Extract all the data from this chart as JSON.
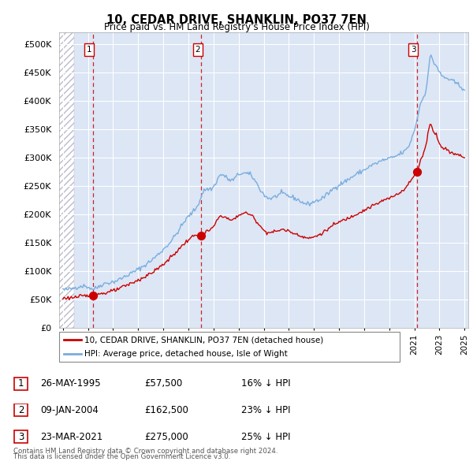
{
  "title": "10, CEDAR DRIVE, SHANKLIN, PO37 7EN",
  "subtitle": "Price paid vs. HM Land Registry's House Price Index (HPI)",
  "footer1": "Contains HM Land Registry data © Crown copyright and database right 2024.",
  "footer2": "This data is licensed under the Open Government Licence v3.0.",
  "legend_house": "10, CEDAR DRIVE, SHANKLIN, PO37 7EN (detached house)",
  "legend_hpi": "HPI: Average price, detached house, Isle of Wight",
  "transactions": [
    {
      "num": 1,
      "date": "26-MAY-1995",
      "price": "£57,500",
      "rel": "16% ↓ HPI"
    },
    {
      "num": 2,
      "date": "09-JAN-2004",
      "price": "£162,500",
      "rel": "23% ↓ HPI"
    },
    {
      "num": 3,
      "date": "23-MAR-2021",
      "price": "£275,000",
      "rel": "25% ↓ HPI"
    }
  ],
  "sale_years": [
    1995.38,
    2004.03,
    2021.22
  ],
  "sale_prices": [
    57500,
    162500,
    275000
  ],
  "hpi_color": "#7aadde",
  "sale_color": "#cc0000",
  "vline_color": "#cc0000",
  "ylim": [
    0,
    520000
  ],
  "yticks": [
    0,
    50000,
    100000,
    150000,
    200000,
    250000,
    300000,
    350000,
    400000,
    450000,
    500000
  ],
  "bg_color": "#dce6f5",
  "hatch_color": "#c8d4e8",
  "grid_color": "#b0c4de",
  "xtick_years": [
    1993,
    1995,
    1997,
    1999,
    2001,
    2003,
    2005,
    2007,
    2009,
    2011,
    2013,
    2015,
    2017,
    2019,
    2021,
    2023,
    2025
  ]
}
